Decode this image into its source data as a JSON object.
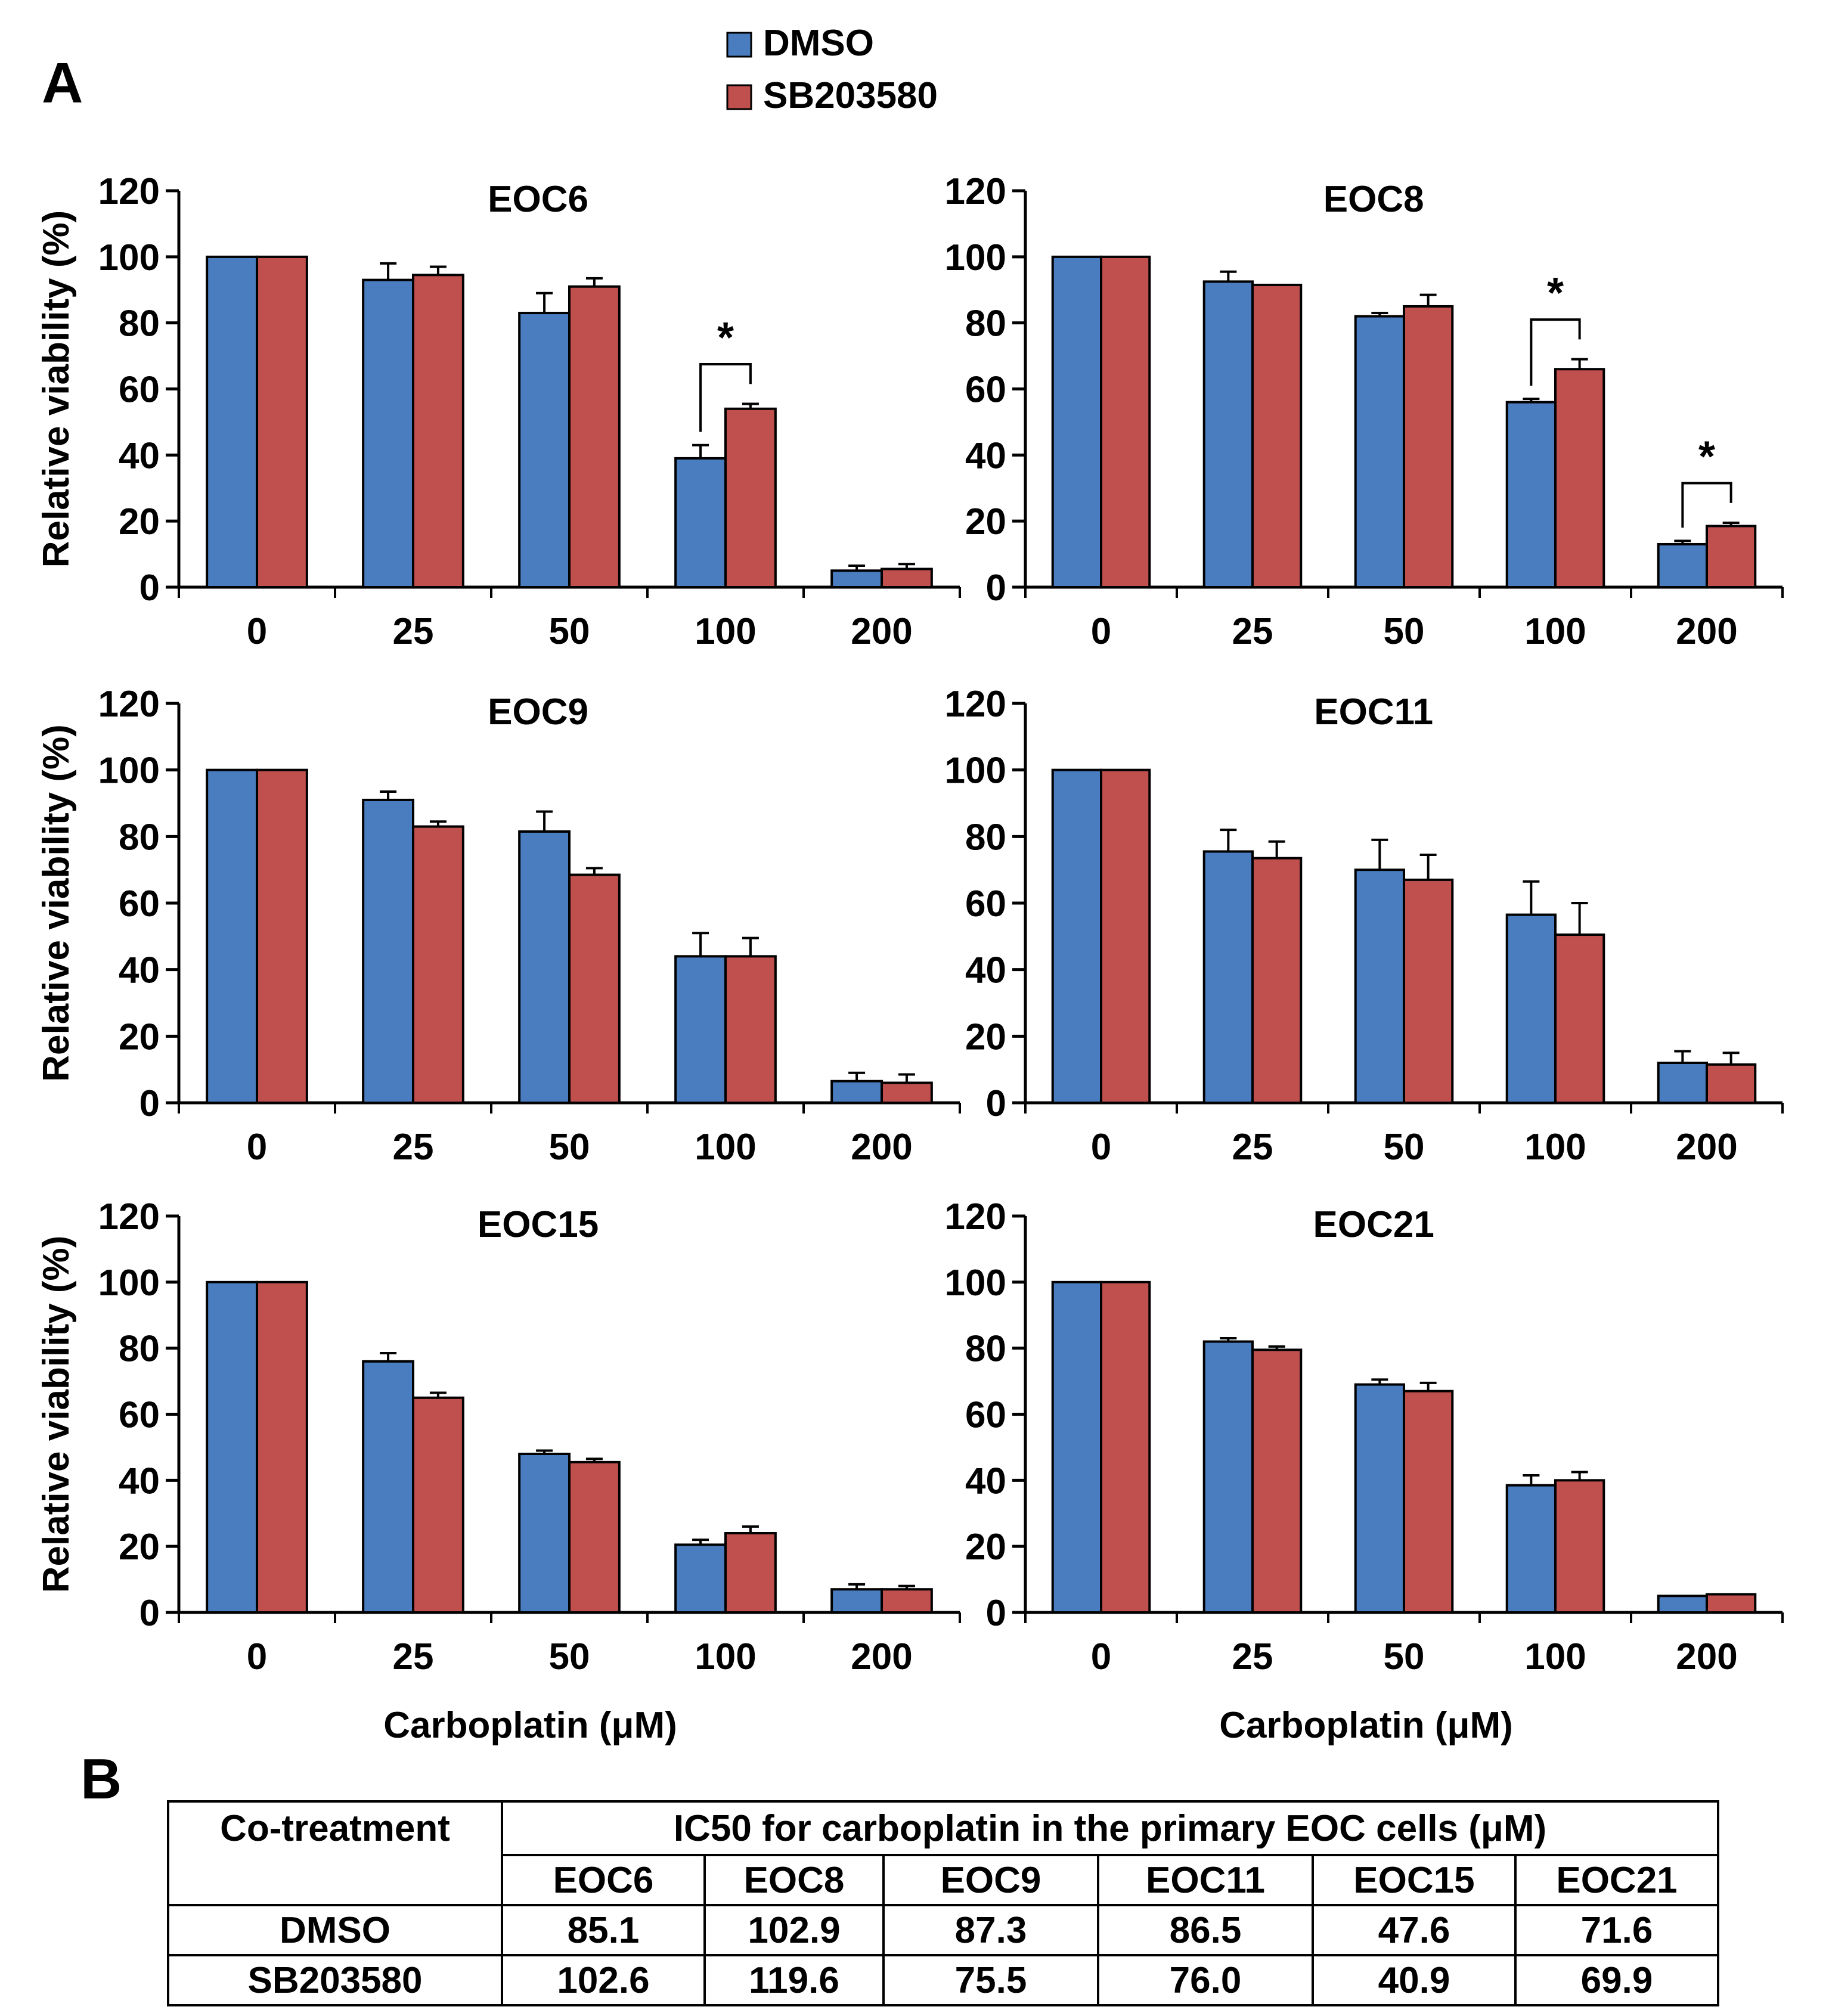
{
  "panel_labels": {
    "a": "A",
    "b": "B"
  },
  "legend": [
    {
      "name": "DMSO",
      "color": "#4a7dbf"
    },
    {
      "name": "SB203580",
      "color": "#c0504d"
    }
  ],
  "colors": {
    "dmso": "#4a7dbf",
    "sb": "#c0504d"
  },
  "chart_data": [
    {
      "type": "bar",
      "title": "EOC6",
      "ylabel": "Relative viability (%)",
      "xlabel": "",
      "categories": [
        "0",
        "25",
        "50",
        "100",
        "200"
      ],
      "ylim": [
        0,
        120
      ],
      "yticks": [
        "0",
        "20",
        "40",
        "60",
        "80",
        "100",
        "120"
      ],
      "series": [
        {
          "name": "DMSO",
          "values": [
            100,
            93,
            83,
            39,
            5
          ],
          "errors": [
            0.5,
            5,
            6,
            4,
            1.5
          ]
        },
        {
          "name": "SB203580",
          "values": [
            100,
            94.5,
            91,
            54,
            5.5
          ],
          "errors": [
            0.5,
            2.5,
            2.5,
            1.5,
            1.5
          ]
        }
      ],
      "significance": [
        {
          "category": "100",
          "label": "*"
        }
      ]
    },
    {
      "type": "bar",
      "title": "EOC8",
      "ylabel": "",
      "xlabel": "",
      "categories": [
        "0",
        "25",
        "50",
        "100",
        "200"
      ],
      "ylim": [
        0,
        120
      ],
      "yticks": [
        "0",
        "20",
        "40",
        "60",
        "80",
        "100",
        "120"
      ],
      "series": [
        {
          "name": "DMSO",
          "values": [
            100,
            92.5,
            82,
            56,
            13
          ],
          "errors": [
            0.5,
            3,
            1,
            1,
            1
          ]
        },
        {
          "name": "SB203580",
          "values": [
            100,
            91.5,
            85,
            66,
            18.5
          ],
          "errors": [
            0.5,
            0.5,
            3.5,
            3,
            1
          ]
        }
      ],
      "significance": [
        {
          "category": "100",
          "label": "*"
        },
        {
          "category": "200",
          "label": "*"
        }
      ]
    },
    {
      "type": "bar",
      "title": "EOC9",
      "ylabel": "Relative viability (%)",
      "xlabel": "",
      "categories": [
        "0",
        "25",
        "50",
        "100",
        "200"
      ],
      "ylim": [
        0,
        120
      ],
      "yticks": [
        "0",
        "20",
        "40",
        "60",
        "80",
        "100",
        "120"
      ],
      "series": [
        {
          "name": "DMSO",
          "values": [
            100,
            91,
            81.5,
            44,
            6.5
          ],
          "errors": [
            0.5,
            2.5,
            6,
            7,
            2.5
          ]
        },
        {
          "name": "SB203580",
          "values": [
            100,
            83,
            68.5,
            44,
            6
          ],
          "errors": [
            0.5,
            1.5,
            2,
            5.5,
            2.5
          ]
        }
      ],
      "significance": []
    },
    {
      "type": "bar",
      "title": "EOC11",
      "ylabel": "",
      "xlabel": "",
      "categories": [
        "0",
        "25",
        "50",
        "100",
        "200"
      ],
      "ylim": [
        0,
        120
      ],
      "yticks": [
        "0",
        "20",
        "40",
        "60",
        "80",
        "100",
        "120"
      ],
      "series": [
        {
          "name": "DMSO",
          "values": [
            100,
            75.5,
            70,
            56.5,
            12
          ],
          "errors": [
            0.5,
            6.5,
            9,
            10,
            3.5
          ]
        },
        {
          "name": "SB203580",
          "values": [
            100,
            73.5,
            67,
            50.5,
            11.5
          ],
          "errors": [
            0.5,
            5,
            7.5,
            9.5,
            3.5
          ]
        }
      ],
      "significance": []
    },
    {
      "type": "bar",
      "title": "EOC15",
      "ylabel": "Relative viability (%)",
      "xlabel": "Carboplatin (μM)",
      "categories": [
        "0",
        "25",
        "50",
        "100",
        "200"
      ],
      "ylim": [
        0,
        120
      ],
      "yticks": [
        "0",
        "20",
        "40",
        "60",
        "80",
        "100",
        "120"
      ],
      "series": [
        {
          "name": "DMSO",
          "values": [
            100,
            76,
            48,
            20.5,
            7
          ],
          "errors": [
            0.5,
            2.5,
            1,
            1.5,
            1.5
          ]
        },
        {
          "name": "SB203580",
          "values": [
            100,
            65,
            45.5,
            24,
            7
          ],
          "errors": [
            0.5,
            1.5,
            1,
            2,
            1
          ]
        }
      ],
      "significance": []
    },
    {
      "type": "bar",
      "title": "EOC21",
      "ylabel": "",
      "xlabel": "Carboplatin (μM)",
      "categories": [
        "0",
        "25",
        "50",
        "100",
        "200"
      ],
      "ylim": [
        0,
        120
      ],
      "yticks": [
        "0",
        "20",
        "40",
        "60",
        "80",
        "100",
        "120"
      ],
      "series": [
        {
          "name": "DMSO",
          "values": [
            100,
            82,
            69,
            38.5,
            5
          ],
          "errors": [
            0.5,
            1,
            1.5,
            3,
            0.5
          ]
        },
        {
          "name": "SB203580",
          "values": [
            100,
            79.5,
            67,
            40,
            5.5
          ],
          "errors": [
            0.5,
            1,
            2.5,
            2.5,
            0.5
          ]
        }
      ],
      "significance": []
    }
  ],
  "table": {
    "corner": "Co-treatment",
    "span_header": "IC50 for carboplatin in the primary EOC cells (μM)",
    "columns": [
      "EOC6",
      "EOC8",
      "EOC9",
      "EOC11",
      "EOC15",
      "EOC21"
    ],
    "rows": [
      {
        "label": "DMSO",
        "values": [
          "85.1",
          "102.9",
          "87.3",
          "86.5",
          "47.6",
          "71.6"
        ]
      },
      {
        "label": "SB203580",
        "values": [
          "102.6",
          "119.6",
          "75.5",
          "76.0",
          "40.9",
          "69.9"
        ]
      }
    ]
  }
}
